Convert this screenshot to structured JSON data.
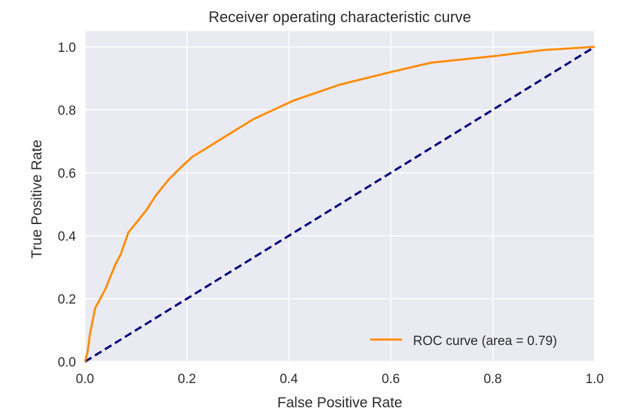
{
  "chart_data": {
    "type": "line",
    "title": "Receiver operating characteristic curve",
    "xlabel": "False Positive Rate",
    "ylabel": "True Positive Rate",
    "xlim": [
      0.0,
      1.0
    ],
    "ylim": [
      0.0,
      1.05
    ],
    "xticks": [
      "0.0",
      "0.2",
      "0.4",
      "0.6",
      "0.8",
      "1.0"
    ],
    "yticks": [
      "0.0",
      "0.2",
      "0.4",
      "0.6",
      "0.8",
      "1.0"
    ],
    "grid": true,
    "legend": {
      "position": "lower-right"
    },
    "colors": {
      "plot_background": "#EAEAF2",
      "grid": "#FFFFFF",
      "roc": "#FF8C00",
      "diagonal": "#000080"
    },
    "series": [
      {
        "name": "ROC curve (area = 0.79)",
        "style": "solid",
        "x": [
          0.0,
          0.005,
          0.01,
          0.015,
          0.02,
          0.03,
          0.04,
          0.05,
          0.06,
          0.07,
          0.085,
          0.1,
          0.12,
          0.14,
          0.165,
          0.19,
          0.21,
          0.26,
          0.33,
          0.41,
          0.5,
          0.6,
          0.68,
          0.8,
          0.9,
          1.0
        ],
        "y": [
          0.0,
          0.03,
          0.09,
          0.13,
          0.17,
          0.2,
          0.23,
          0.27,
          0.31,
          0.34,
          0.41,
          0.44,
          0.48,
          0.53,
          0.58,
          0.62,
          0.65,
          0.7,
          0.77,
          0.83,
          0.88,
          0.92,
          0.95,
          0.97,
          0.99,
          1.0
        ]
      },
      {
        "name": "",
        "style": "dashed",
        "x": [
          0.0,
          1.0
        ],
        "y": [
          0.0,
          1.0
        ]
      }
    ]
  }
}
